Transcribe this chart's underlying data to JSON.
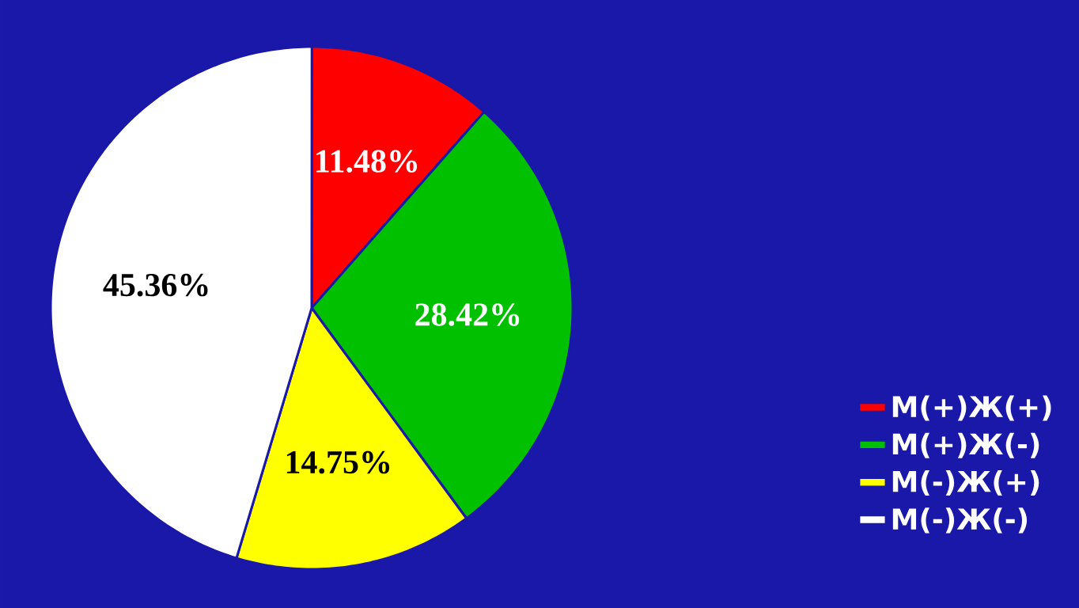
{
  "chart_data": {
    "type": "pie",
    "categories": [
      "M(+)Ж(+)",
      "M(+)Ж(-)",
      "M(-)Ж(+)",
      "M(-)Ж(-)"
    ],
    "values": [
      11.48,
      28.42,
      14.75,
      45.36
    ],
    "value_labels": [
      "11.48%",
      "28.42%",
      "14.75%",
      "45.36%"
    ],
    "colors": [
      "#ff0000",
      "#00c000",
      "#ffff00",
      "#ffffff"
    ],
    "legend": "right"
  }
}
